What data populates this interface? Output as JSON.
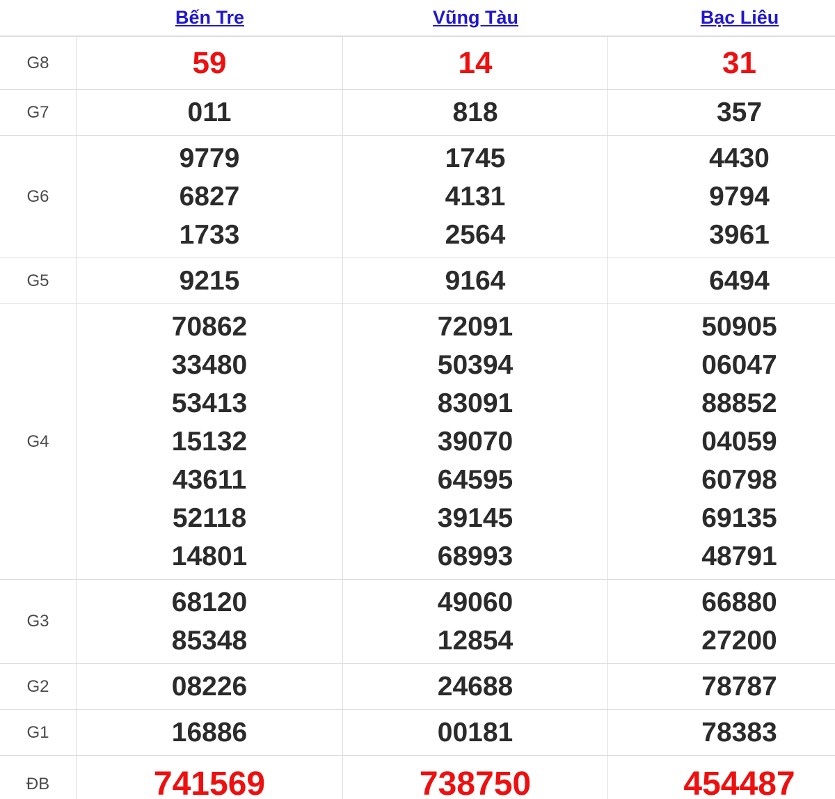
{
  "table": {
    "columns": [
      {
        "label": "Bến Tre",
        "slug": "ben-tre"
      },
      {
        "label": "Vũng Tàu",
        "slug": "vung-tau"
      },
      {
        "label": "Bạc Liêu",
        "slug": "bac-lieu"
      }
    ],
    "rows": [
      {
        "label": "G8",
        "style": "red",
        "values": [
          [
            "59"
          ],
          [
            "14"
          ],
          [
            "31"
          ]
        ]
      },
      {
        "label": "G7",
        "style": "normal",
        "values": [
          [
            "011"
          ],
          [
            "818"
          ],
          [
            "357"
          ]
        ]
      },
      {
        "label": "G6",
        "style": "normal",
        "values": [
          [
            "9779",
            "6827",
            "1733"
          ],
          [
            "1745",
            "4131",
            "2564"
          ],
          [
            "4430",
            "9794",
            "3961"
          ]
        ]
      },
      {
        "label": "G5",
        "style": "normal",
        "values": [
          [
            "9215"
          ],
          [
            "9164"
          ],
          [
            "6494"
          ]
        ]
      },
      {
        "label": "G4",
        "style": "normal",
        "values": [
          [
            "70862",
            "33480",
            "53413",
            "15132",
            "43611",
            "52118",
            "14801"
          ],
          [
            "72091",
            "50394",
            "83091",
            "39070",
            "64595",
            "39145",
            "68993"
          ],
          [
            "50905",
            "06047",
            "88852",
            "04059",
            "60798",
            "69135",
            "48791"
          ]
        ]
      },
      {
        "label": "G3",
        "style": "normal",
        "values": [
          [
            "68120",
            "85348"
          ],
          [
            "49060",
            "12854"
          ],
          [
            "66880",
            "27200"
          ]
        ]
      },
      {
        "label": "G2",
        "style": "normal",
        "values": [
          [
            "08226"
          ],
          [
            "24688"
          ],
          [
            "78787"
          ]
        ]
      },
      {
        "label": "G1",
        "style": "normal",
        "values": [
          [
            "16886"
          ],
          [
            "00181"
          ],
          [
            "78383"
          ]
        ]
      },
      {
        "label": "ĐB",
        "style": "red-large",
        "values": [
          [
            "741569"
          ],
          [
            "738750"
          ],
          [
            "454487"
          ]
        ]
      }
    ]
  },
  "colors": {
    "link_blue": "#2118cc",
    "number_red": "#ee0f0f",
    "number_black": "#2b2b2b",
    "label_gray": "#4a4a4a",
    "border_gray": "#dddddd"
  }
}
